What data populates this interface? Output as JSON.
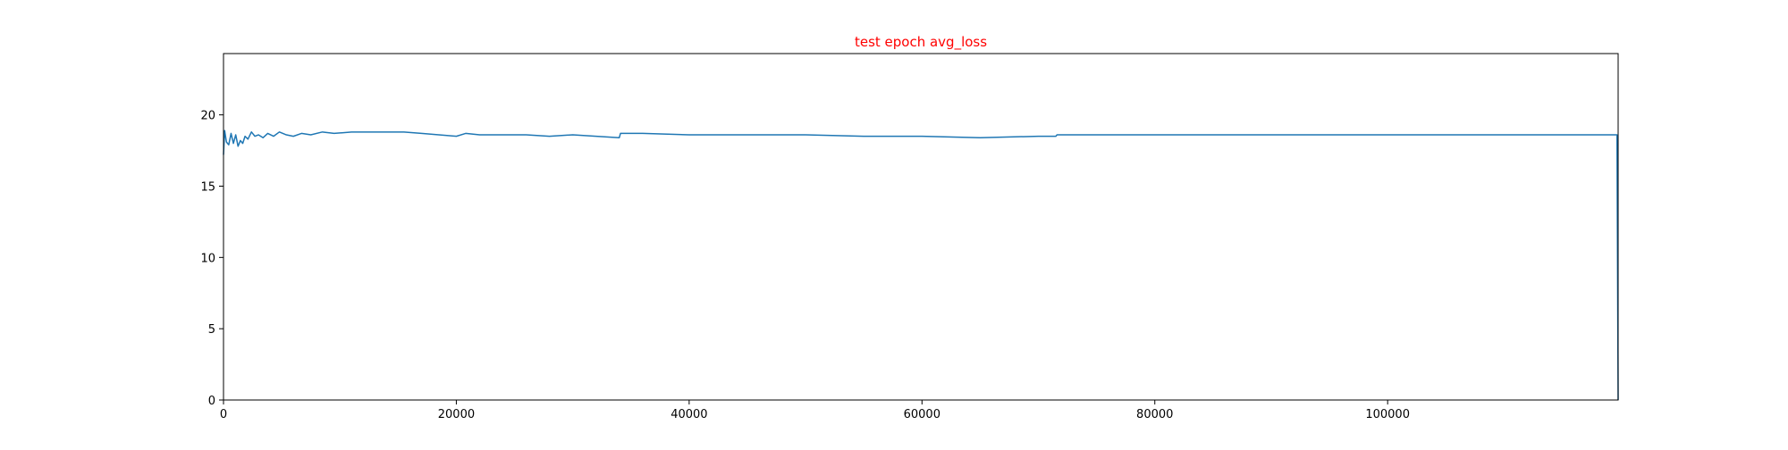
{
  "chart_data": {
    "type": "line",
    "title": "test epoch avg_loss",
    "title_color": "#ff0000",
    "line_color": "#1f77b4",
    "xlabel": "",
    "ylabel": "",
    "xlim": [
      0,
      119800
    ],
    "ylim": [
      0,
      24.3
    ],
    "xticks": [
      0,
      20000,
      40000,
      60000,
      80000,
      100000
    ],
    "yticks": [
      0,
      5,
      10,
      15,
      20
    ],
    "grid": false,
    "series": [
      {
        "x": [
          0,
          100,
          250,
          450,
          650,
          850,
          1050,
          1250,
          1450,
          1650,
          1850,
          2100,
          2400,
          2700,
          3000,
          3400,
          3800,
          4300,
          4800,
          5400,
          6000,
          6700,
          7500,
          8500,
          9500,
          11000,
          12500,
          14000,
          15500,
          17000,
          18500,
          20000,
          20800,
          22000,
          24000,
          26000,
          28000,
          30000,
          32000,
          34000,
          34100,
          36000,
          40000,
          45000,
          50000,
          55000,
          60000,
          65000,
          70000,
          71500,
          71600,
          75000,
          80000,
          85000,
          90000,
          95000,
          100000,
          105000,
          110000,
          115000,
          119700,
          119800
        ],
        "y": [
          17.2,
          18.9,
          18.1,
          17.9,
          18.7,
          18.0,
          18.6,
          17.8,
          18.2,
          18.0,
          18.5,
          18.3,
          18.8,
          18.5,
          18.6,
          18.4,
          18.7,
          18.5,
          18.8,
          18.6,
          18.5,
          18.7,
          18.6,
          18.8,
          18.7,
          18.8,
          18.8,
          18.8,
          18.8,
          18.7,
          18.6,
          18.5,
          18.7,
          18.6,
          18.6,
          18.6,
          18.5,
          18.6,
          18.5,
          18.4,
          18.7,
          18.7,
          18.6,
          18.6,
          18.6,
          18.5,
          18.5,
          18.4,
          18.5,
          18.5,
          18.6,
          18.6,
          18.6,
          18.6,
          18.6,
          18.6,
          18.6,
          18.6,
          18.6,
          18.6,
          18.6,
          0
        ]
      }
    ]
  }
}
